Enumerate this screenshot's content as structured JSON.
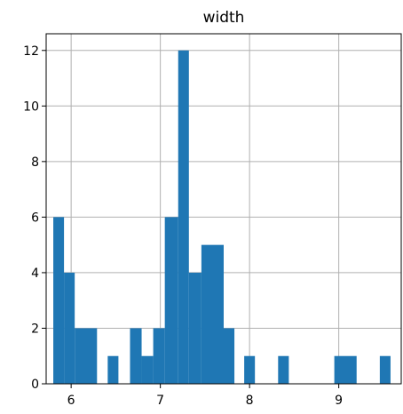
{
  "chart_data": {
    "type": "bar",
    "title": "width",
    "xlabel": "",
    "ylabel": "",
    "xlim": [
      5.72,
      9.7
    ],
    "ylim": [
      0,
      12.6
    ],
    "xticks": [
      6,
      7,
      8,
      9
    ],
    "yticks": [
      0,
      2,
      4,
      6,
      8,
      10,
      12
    ],
    "grid": true,
    "bar_color": "#1f77b4",
    "bins": [
      {
        "x0": 5.8,
        "x1": 5.92,
        "value": 6
      },
      {
        "x0": 5.92,
        "x1": 6.04,
        "value": 4
      },
      {
        "x0": 6.04,
        "x1": 6.29,
        "value": 2
      },
      {
        "x0": 6.29,
        "x1": 6.41,
        "value": 0
      },
      {
        "x0": 6.41,
        "x1": 6.53,
        "value": 1
      },
      {
        "x0": 6.53,
        "x1": 6.66,
        "value": 0
      },
      {
        "x0": 6.66,
        "x1": 6.79,
        "value": 2
      },
      {
        "x0": 6.79,
        "x1": 6.92,
        "value": 1
      },
      {
        "x0": 6.92,
        "x1": 7.05,
        "value": 2
      },
      {
        "x0": 7.05,
        "x1": 7.2,
        "value": 6
      },
      {
        "x0": 7.2,
        "x1": 7.32,
        "value": 12
      },
      {
        "x0": 7.32,
        "x1": 7.46,
        "value": 4
      },
      {
        "x0": 7.46,
        "x1": 7.71,
        "value": 5
      },
      {
        "x0": 7.71,
        "x1": 7.83,
        "value": 2
      },
      {
        "x0": 7.94,
        "x1": 8.06,
        "value": 1
      },
      {
        "x0": 8.32,
        "x1": 8.44,
        "value": 1
      },
      {
        "x0": 8.95,
        "x1": 9.2,
        "value": 1
      },
      {
        "x0": 9.46,
        "x1": 9.58,
        "value": 1
      }
    ]
  }
}
